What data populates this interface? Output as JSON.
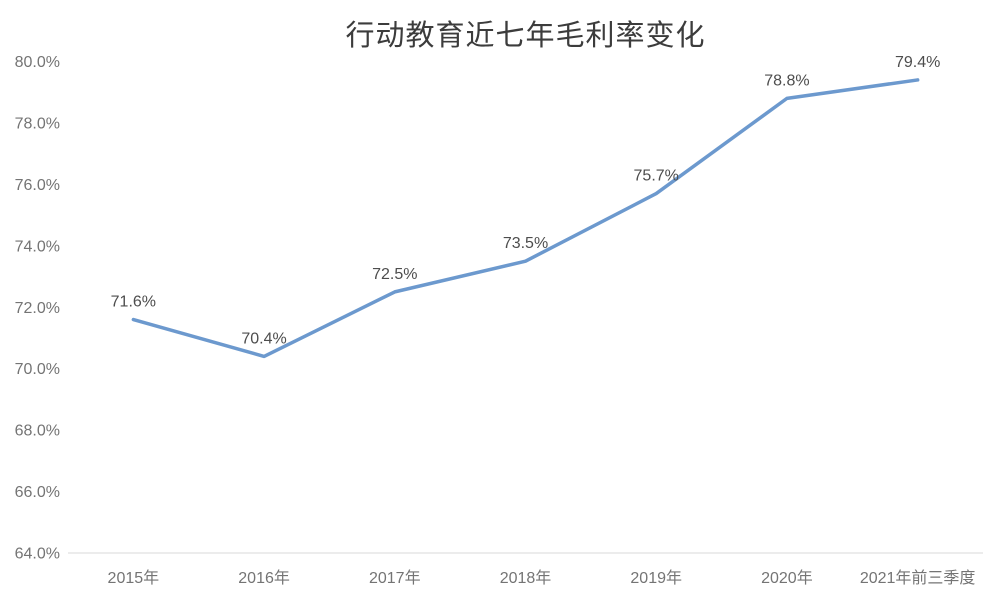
{
  "chart_data": {
    "type": "line",
    "title": "行动教育近七年毛利率变化",
    "categories": [
      "2015年",
      "2016年",
      "2017年",
      "2018年",
      "2019年",
      "2020年",
      "2021年前三季度"
    ],
    "series": [
      {
        "name": "毛利率",
        "values": [
          71.6,
          70.4,
          72.5,
          73.5,
          75.7,
          78.8,
          79.4
        ]
      }
    ],
    "point_labels": [
      "71.6%",
      "70.4%",
      "72.5%",
      "73.5%",
      "75.7%",
      "78.8%",
      "79.4%"
    ],
    "xlabel": "",
    "ylabel": "",
    "ylim": [
      64,
      80
    ],
    "y_tick_step": 2,
    "y_tick_labels": [
      "80.0%",
      "78.0%",
      "76.0%",
      "74.0%",
      "72.0%",
      "70.0%",
      "68.0%",
      "66.0%",
      "64.0%"
    ],
    "grid": false,
    "legend": "none",
    "colors": {
      "line": "#6c99ce",
      "title_text": "#3c3c3c",
      "axis_text": "#747474",
      "data_label_text": "#4d4d4d",
      "axis_line": "#d9d9d9",
      "background": "#ffffff"
    }
  }
}
